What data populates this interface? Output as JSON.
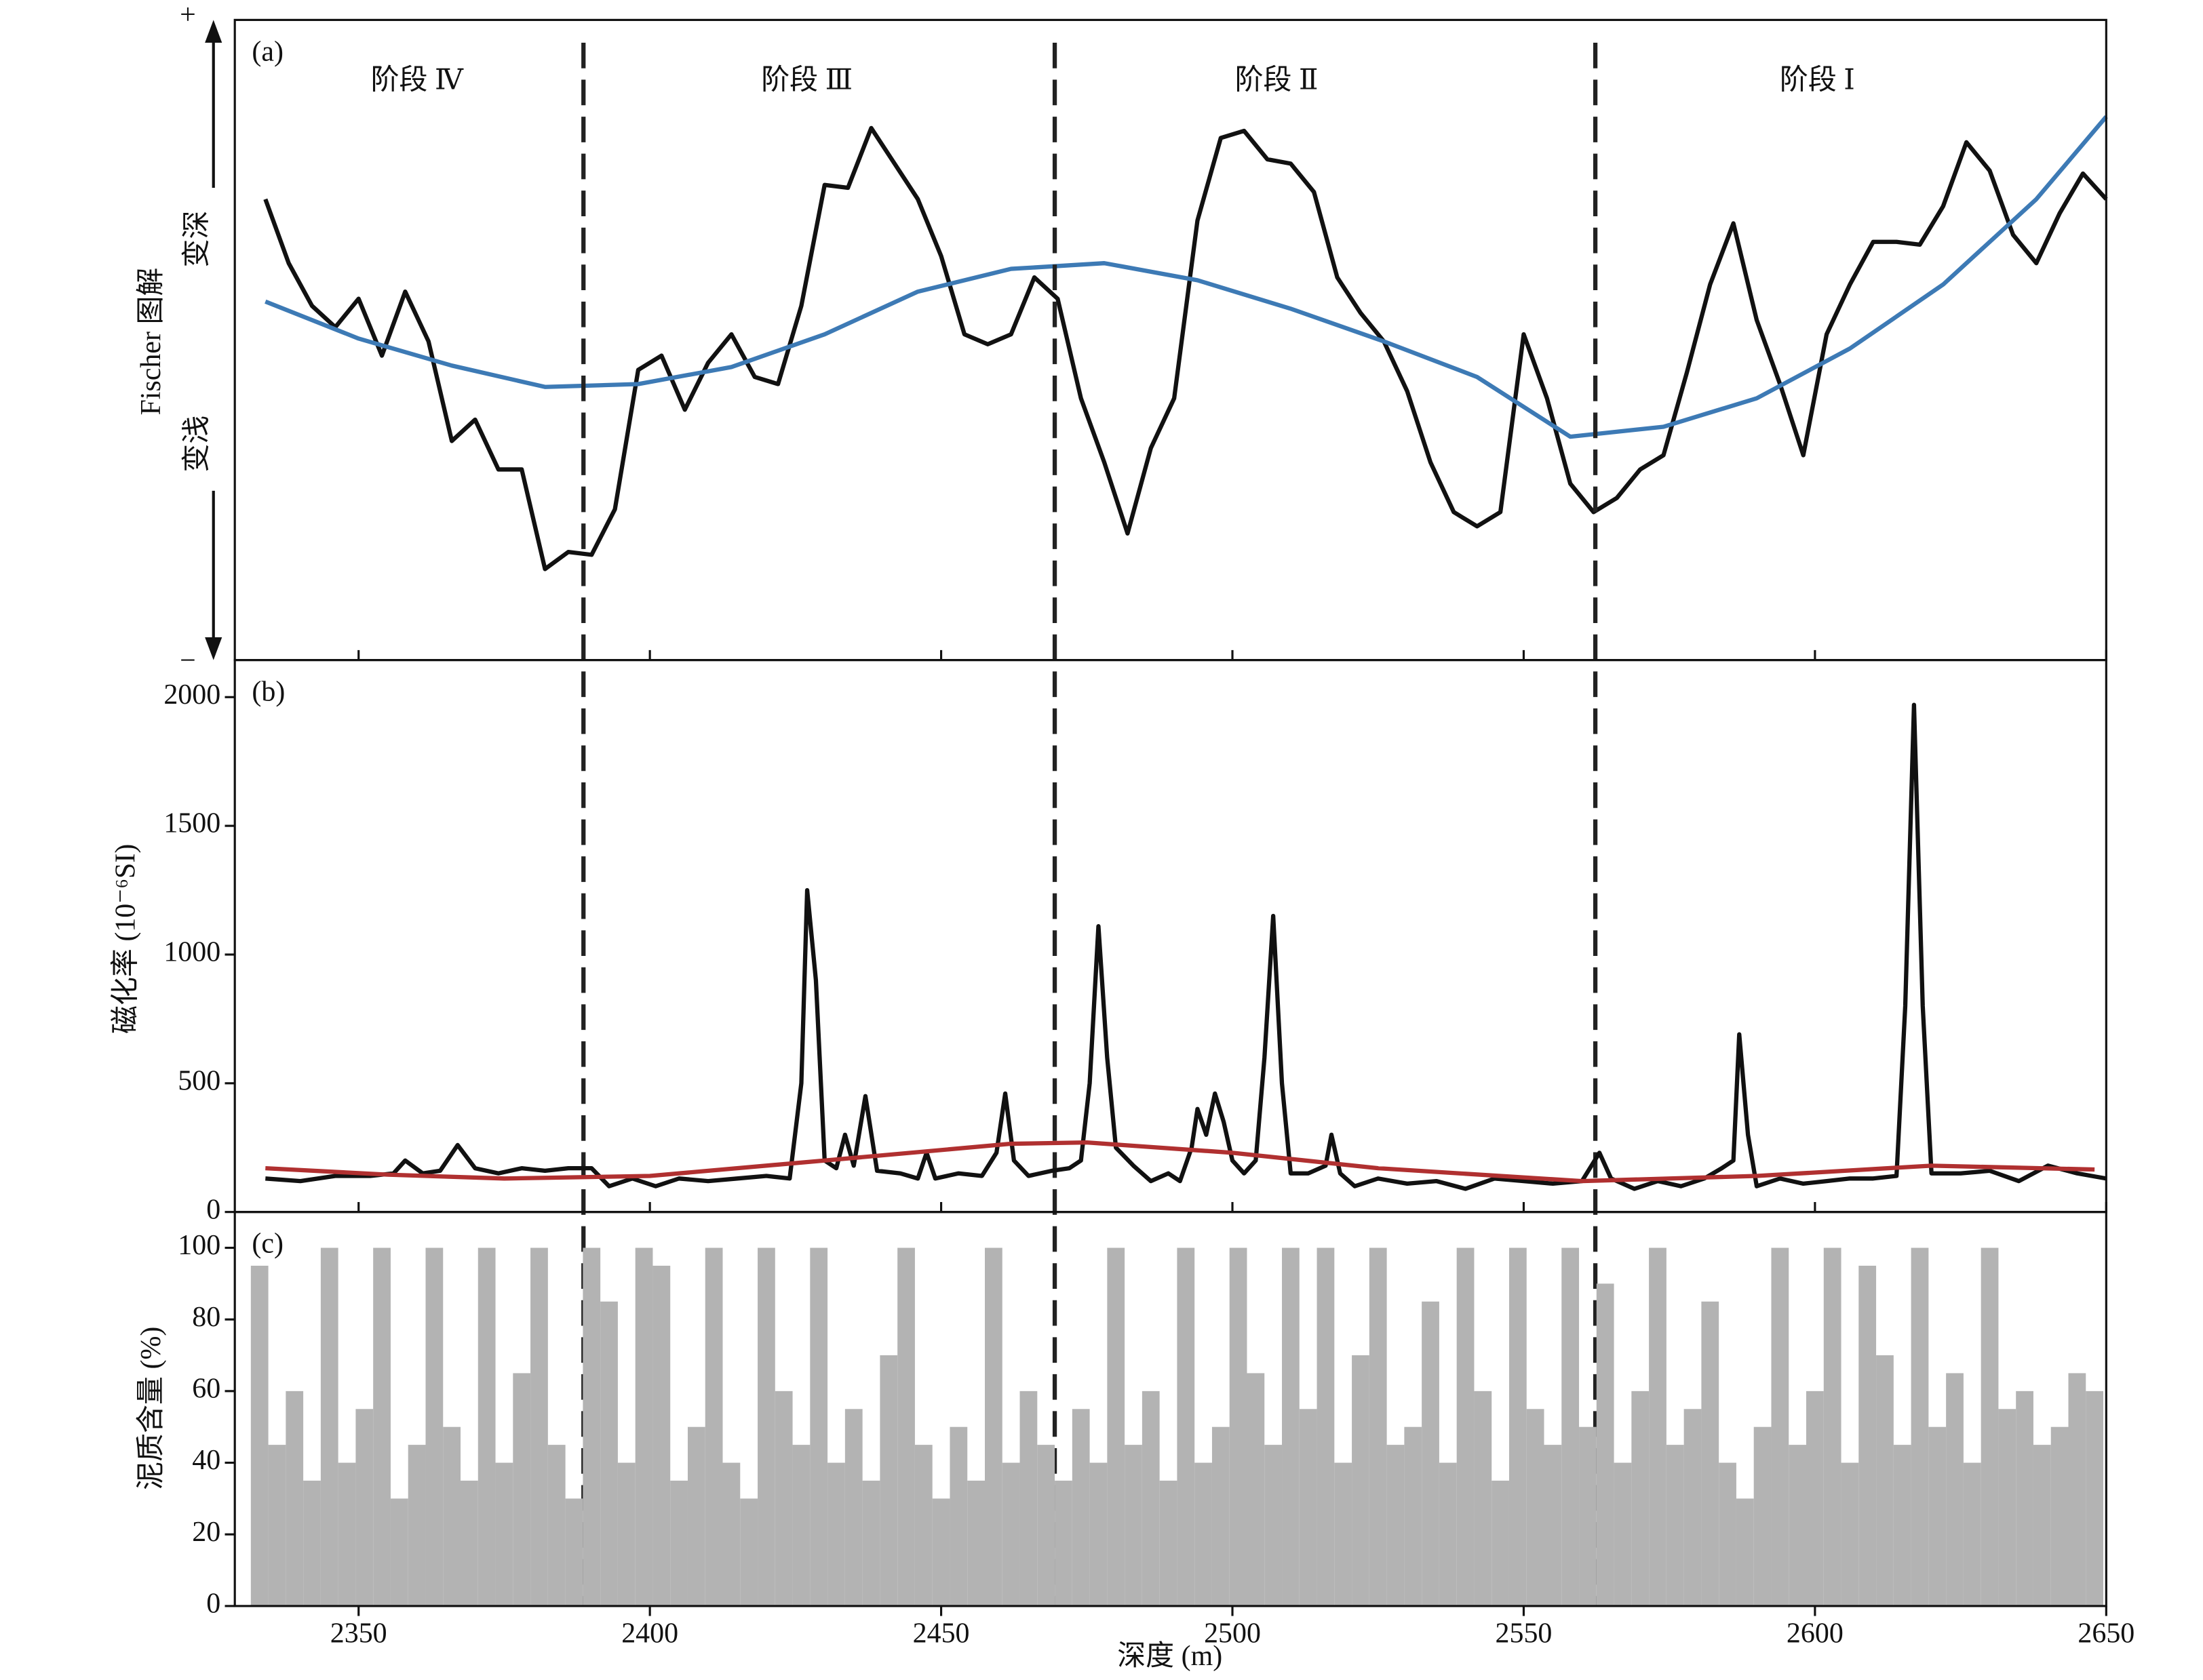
{
  "chart_data": [
    {
      "type": "line",
      "panel_label": "(a)",
      "ylabel": "Fischer 图解",
      "deep_label": "变深",
      "shallow_label": "变浅",
      "plus": "+",
      "minus": "−",
      "stages": [
        "阶段 Ⅳ",
        "阶段 Ⅲ",
        "阶段 Ⅱ",
        "阶段 Ⅰ"
      ],
      "dividers": [
        2388.6,
        2469.5,
        2562.3
      ],
      "xlim": [
        2328.75,
        2650
      ],
      "xticks": [
        2350,
        2400,
        2450,
        2500,
        2550,
        2600,
        2650
      ],
      "ylim": [
        0,
        450
      ],
      "series": [
        {
          "color": "#111111",
          "x": [
            2334,
            2338,
            2342,
            2346,
            2350,
            2354,
            2358,
            2362,
            2366,
            2370,
            2374,
            2378,
            2382,
            2386,
            2390,
            2394,
            2398,
            2402,
            2406,
            2410,
            2414,
            2418,
            2422,
            2426,
            2430,
            2434,
            2438,
            2442,
            2446,
            2450,
            2454,
            2458,
            2462,
            2466,
            2470,
            2474,
            2478,
            2482,
            2486,
            2490,
            2494,
            2498,
            2502,
            2506,
            2510,
            2514,
            2518,
            2522,
            2526,
            2530,
            2534,
            2538,
            2542,
            2546,
            2550,
            2554,
            2558,
            2562,
            2566,
            2570,
            2574,
            2578,
            2582,
            2586,
            2590,
            2594,
            2598,
            2602,
            2606,
            2610,
            2614,
            2618,
            2622,
            2626,
            2630,
            2634,
            2638,
            2642,
            2646,
            2650
          ],
          "values": [
            324,
            279,
            249,
            234,
            254,
            214,
            259,
            224,
            154,
            169,
            134,
            134,
            64,
            76,
            74,
            106,
            204,
            214,
            176,
            209,
            229,
            199,
            194,
            249,
            334,
            332,
            374,
            349,
            324,
            284,
            229,
            222,
            229,
            269,
            254,
            184,
            139,
            89,
            149,
            184,
            309,
            367,
            372,
            352,
            349,
            329,
            269,
            244,
            224,
            189,
            139,
            104,
            94,
            104,
            229,
            184,
            124,
            104,
            114,
            134,
            144,
            202,
            264,
            307,
            239,
            194,
            144,
            229,
            264,
            294,
            294,
            292,
            319,
            364,
            344,
            299,
            279,
            314,
            342,
            324
          ]
        },
        {
          "color": "#3d7ab5",
          "x": [
            2334,
            2350,
            2366,
            2382,
            2398,
            2414,
            2430,
            2446,
            2462,
            2478,
            2494,
            2510,
            2526,
            2542,
            2558,
            2574,
            2590,
            2606,
            2622,
            2638,
            2650
          ],
          "values": [
            252,
            226,
            207,
            192,
            194,
            206,
            229,
            259,
            275,
            279,
            267,
            247,
            224,
            199,
            157,
            164,
            184,
            219,
            264,
            324,
            382
          ]
        }
      ]
    },
    {
      "type": "line",
      "panel_label": "(b)",
      "ylabel": "磁化率 (10⁻⁶SI)",
      "xlim": [
        2328.75,
        2650
      ],
      "xticks": [
        2350,
        2400,
        2450,
        2500,
        2550,
        2600,
        2650
      ],
      "ylim": [
        0,
        2144
      ],
      "yticks": [
        0,
        500,
        1000,
        1500,
        2000
      ],
      "series": [
        {
          "color": "#111111",
          "x": [
            2334,
            2340,
            2346,
            2352,
            2356,
            2358,
            2361,
            2364,
            2367,
            2370,
            2374,
            2378,
            2382,
            2386,
            2390,
            2393,
            2397,
            2401,
            2405,
            2410,
            2415,
            2420,
            2424,
            2426,
            2427,
            2428.5,
            2430,
            2432,
            2433.5,
            2435,
            2437,
            2439,
            2443,
            2446,
            2447.5,
            2449,
            2453,
            2457,
            2459.5,
            2461,
            2462.5,
            2465,
            2469,
            2472,
            2474,
            2475.5,
            2477,
            2478.5,
            2480,
            2483,
            2486,
            2489,
            2491,
            2493,
            2494,
            2495.5,
            2497,
            2498.5,
            2500,
            2502,
            2504,
            2505.5,
            2507,
            2508.5,
            2510,
            2513,
            2516,
            2517,
            2518.5,
            2521,
            2525,
            2530,
            2535,
            2540,
            2545,
            2550,
            2555,
            2560,
            2563,
            2565,
            2569,
            2573,
            2577,
            2581,
            2584,
            2586,
            2587,
            2588.5,
            2590,
            2594,
            2598,
            2602,
            2606,
            2610,
            2614,
            2615.5,
            2617,
            2618.5,
            2620,
            2625,
            2630,
            2635,
            2640,
            2645,
            2650
          ],
          "values": [
            130,
            120,
            140,
            140,
            150,
            200,
            150,
            160,
            260,
            170,
            150,
            170,
            160,
            170,
            170,
            100,
            130,
            100,
            130,
            120,
            130,
            140,
            130,
            500,
            1250,
            900,
            200,
            170,
            300,
            180,
            450,
            160,
            150,
            130,
            230,
            130,
            150,
            140,
            230,
            460,
            200,
            140,
            160,
            170,
            200,
            500,
            1110,
            600,
            250,
            180,
            120,
            150,
            120,
            250,
            400,
            300,
            460,
            350,
            200,
            150,
            200,
            600,
            1150,
            500,
            150,
            150,
            180,
            300,
            150,
            100,
            130,
            110,
            120,
            90,
            130,
            120,
            110,
            120,
            230,
            130,
            90,
            120,
            100,
            130,
            170,
            200,
            690,
            300,
            100,
            130,
            110,
            120,
            130,
            130,
            140,
            800,
            1970,
            800,
            150,
            150,
            160,
            120,
            180,
            150,
            130
          ]
        },
        {
          "color": "#b03030",
          "x": [
            2334,
            2355,
            2375,
            2400,
            2430,
            2462,
            2475,
            2500,
            2525,
            2560,
            2590,
            2620,
            2648
          ],
          "values": [
            170,
            145,
            130,
            140,
            200,
            265,
            270,
            230,
            170,
            120,
            140,
            180,
            165
          ]
        }
      ]
    },
    {
      "type": "bar",
      "panel_label": "(c)",
      "ylabel": "泥质含量 (%)",
      "xlabel": "深度 (m)",
      "color": "#b3b3b3",
      "xlim": [
        2328.75,
        2650
      ],
      "xticks": [
        2350,
        2400,
        2450,
        2500,
        2550,
        2600,
        2650
      ],
      "ylim": [
        0,
        110
      ],
      "yticks": [
        0,
        20,
        40,
        60,
        80,
        100
      ],
      "x": [
        2333,
        2336,
        2339,
        2342,
        2345,
        2348,
        2351,
        2354,
        2357,
        2360,
        2363,
        2366,
        2369,
        2372,
        2375,
        2378,
        2381,
        2384,
        2387,
        2390,
        2393,
        2396,
        2399,
        2402,
        2405,
        2408,
        2411,
        2414,
        2417,
        2420,
        2423,
        2426,
        2429,
        2432,
        2435,
        2438,
        2441,
        2444,
        2447,
        2450,
        2453,
        2456,
        2459,
        2462,
        2465,
        2468,
        2471,
        2474,
        2477,
        2480,
        2483,
        2486,
        2489,
        2492,
        2495,
        2498,
        2501,
        2504,
        2507,
        2510,
        2513,
        2516,
        2519,
        2522,
        2525,
        2528,
        2531,
        2534,
        2537,
        2540,
        2543,
        2546,
        2549,
        2552,
        2555,
        2558,
        2561,
        2564,
        2567,
        2570,
        2573,
        2576,
        2579,
        2582,
        2585,
        2588,
        2591,
        2594,
        2597,
        2600,
        2603,
        2606,
        2609,
        2612,
        2615,
        2618,
        2621,
        2624,
        2627,
        2630,
        2633,
        2636,
        2639,
        2642,
        2645,
        2648
      ],
      "values": [
        95,
        45,
        60,
        35,
        100,
        40,
        55,
        100,
        30,
        45,
        100,
        50,
        35,
        100,
        40,
        65,
        100,
        45,
        30,
        100,
        85,
        40,
        100,
        95,
        35,
        50,
        100,
        40,
        30,
        100,
        60,
        45,
        100,
        40,
        55,
        35,
        70,
        100,
        45,
        30,
        50,
        35,
        100,
        40,
        60,
        45,
        35,
        55,
        40,
        100,
        45,
        60,
        35,
        100,
        40,
        50,
        100,
        65,
        45,
        100,
        55,
        100,
        40,
        70,
        100,
        45,
        50,
        85,
        40,
        100,
        60,
        35,
        100,
        55,
        45,
        100,
        50,
        90,
        40,
        60,
        100,
        45,
        55,
        85,
        40,
        30,
        50,
        100,
        45,
        60,
        100,
        40,
        95,
        70,
        45,
        100,
        50,
        65,
        40,
        100,
        55,
        60,
        45,
        50,
        65,
        60
      ]
    }
  ]
}
